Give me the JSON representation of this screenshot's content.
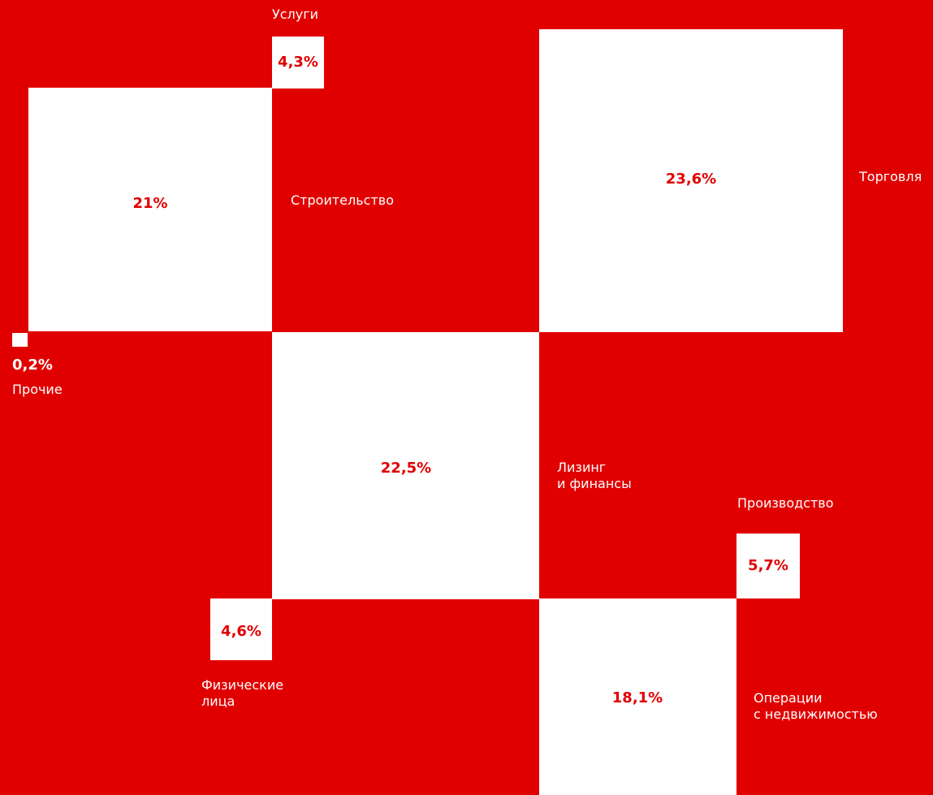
{
  "chart_data": {
    "type": "treemap",
    "unit": "%",
    "colors": {
      "background": "#e10000",
      "square": "#ffffff",
      "value_text": "#e10000",
      "label_text": "#ffffff"
    },
    "items": [
      {
        "id": "services",
        "label": "Услуги",
        "value": 4.3,
        "value_label": "4,3%"
      },
      {
        "id": "other",
        "label": "Прочие",
        "value": 0.2,
        "value_label": "0,2%"
      },
      {
        "id": "construction",
        "label": "Строительство",
        "value": 21.0,
        "value_label": "21%"
      },
      {
        "id": "trade",
        "label": "Торговля",
        "value": 23.6,
        "value_label": "23,6%"
      },
      {
        "id": "leasing",
        "label": "Лизинг\nи финансы",
        "value": 22.5,
        "value_label": "22,5%"
      },
      {
        "id": "production",
        "label": "Производство",
        "value": 5.7,
        "value_label": "5,7%"
      },
      {
        "id": "individuals",
        "label": "Физические\nлица",
        "value": 4.6,
        "value_label": "4,6%"
      },
      {
        "id": "realestate",
        "label": "Операции\nс недвижимостью",
        "value": 18.1,
        "value_label": "18,1%"
      }
    ]
  }
}
